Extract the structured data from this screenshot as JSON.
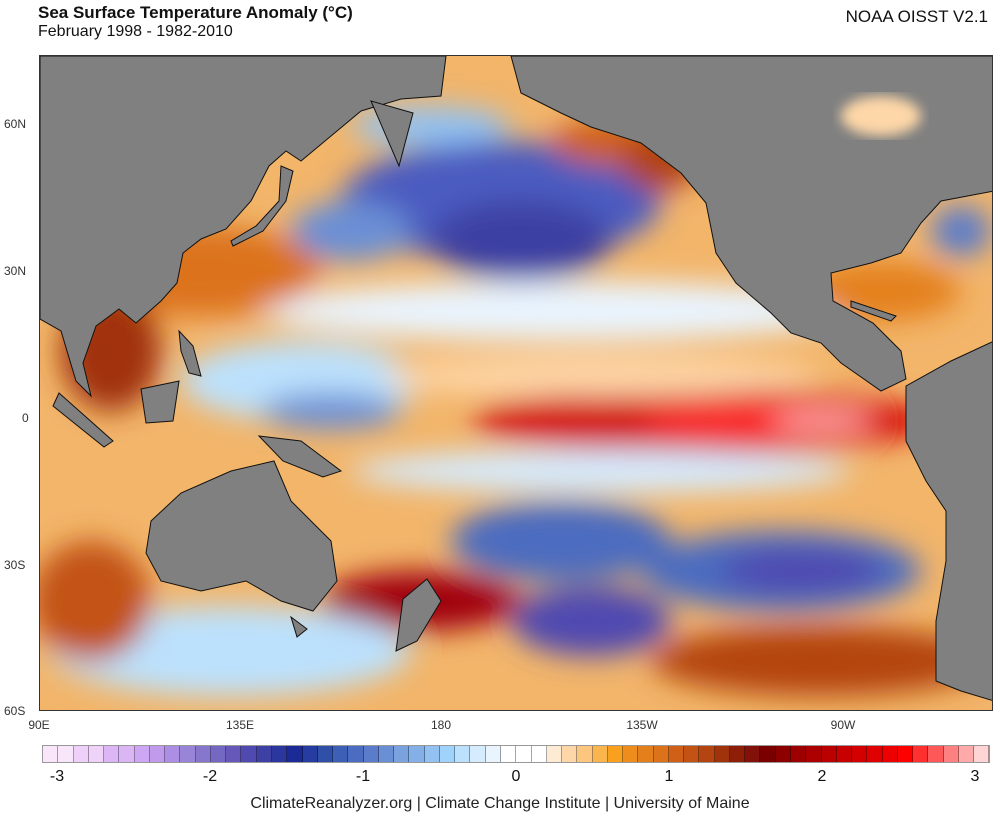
{
  "header": {
    "title": "Sea Surface Temperature Anomaly (°C)",
    "subtitle": "February 1998 - 1982-2010",
    "source": "NOAA OISST V2.1"
  },
  "map": {
    "lat_labels": [
      "60N",
      "30N",
      "0",
      "30S",
      "60S"
    ],
    "lon_labels": [
      "90E",
      "135E",
      "180",
      "135W",
      "90W"
    ],
    "land_color": "#808080"
  },
  "colorbar": {
    "range": [
      -3.1,
      3.1
    ],
    "step": 0.1,
    "tick_labels": [
      "-3",
      "-2",
      "-1",
      "0",
      "1",
      "2",
      "3"
    ],
    "colors": [
      "#f9e6fb",
      "#f8e6fb",
      "#efd0f8",
      "#efd2f8",
      "#dcb6f5",
      "#dbb6f5",
      "#cda7f3",
      "#bf9aed",
      "#ac8ee4",
      "#9985d8",
      "#8676cc",
      "#7468c3",
      "#6558b8",
      "#5049b0",
      "#3d41a3",
      "#2b379d",
      "#1b2a94",
      "#263ca0",
      "#3050a8",
      "#3d5fb5",
      "#4b6cc0",
      "#5a7cca",
      "#6a8fd5",
      "#79a2de",
      "#83b0e6",
      "#93c2f2",
      "#9fd3fc",
      "#bce1fd",
      "#d5ebfe",
      "#e9f4fe",
      "#ffffff",
      "#ffffff",
      "#ffffff",
      "#feebd4",
      "#fed7a8",
      "#fdc67f",
      "#fbb54f",
      "#f9a01f",
      "#ee8d1c",
      "#e4801c",
      "#dc721a",
      "#d06018",
      "#c35314",
      "#b44510",
      "#a0320c",
      "#8e1e08",
      "#821209",
      "#7a0000",
      "#8c0000",
      "#9c0000",
      "#ac0000",
      "#bb0000",
      "#c80000",
      "#d40000",
      "#e00000",
      "#ec0000",
      "#ff0000",
      "#ff3030",
      "#ff5858",
      "#ff8080",
      "#ffaaaa",
      "#ffd4d4"
    ]
  },
  "footer": "ClimateReanalyzer.org | Climate Change Institute | University of Maine"
}
